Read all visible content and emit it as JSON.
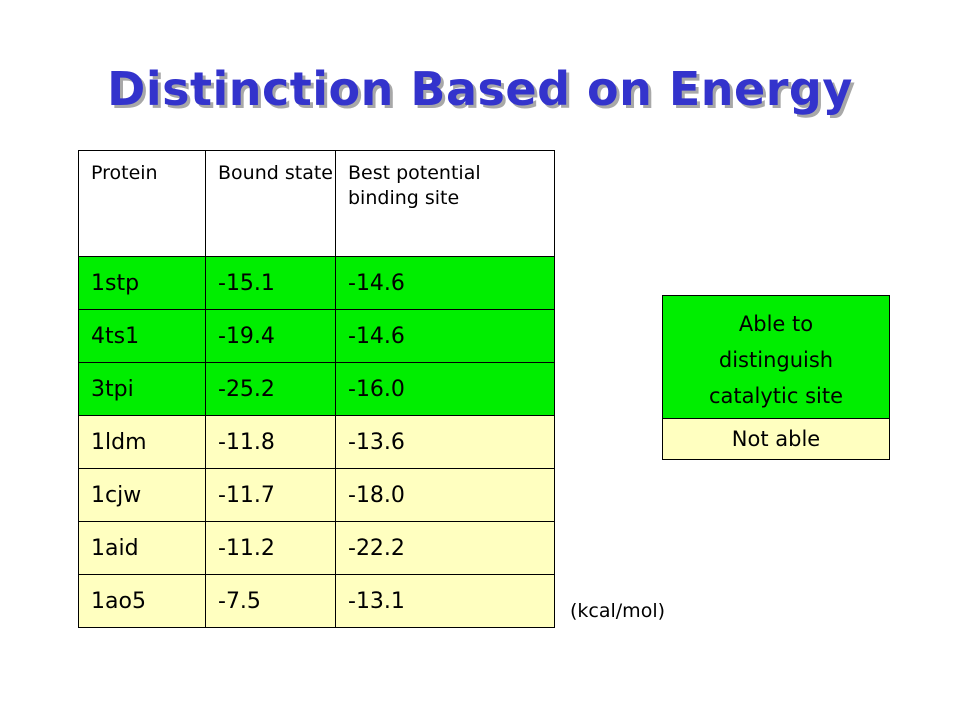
{
  "slide": {
    "title": "Distinction Based on Energy",
    "units": "(kcal/mol)"
  },
  "table": {
    "headers": [
      "Protein",
      "Bound state",
      "Best potential binding site"
    ],
    "rows": [
      {
        "protein": "1stp",
        "bound": "-15.1",
        "best": "-14.6",
        "status": "able"
      },
      {
        "protein": "4ts1",
        "bound": "-19.4",
        "best": "-14.6",
        "status": "able"
      },
      {
        "protein": "3tpi",
        "bound": "-25.2",
        "best": "-16.0",
        "status": "able"
      },
      {
        "protein": "1ldm",
        "bound": "-11.8",
        "best": "-13.6",
        "status": "not"
      },
      {
        "protein": "1cjw",
        "bound": "-11.7",
        "best": "-18.0",
        "status": "not"
      },
      {
        "protein": "1aid",
        "bound": "-11.2",
        "best": "-22.2",
        "status": "not"
      },
      {
        "protein": "1ao5",
        "bound": "-7.5",
        "best": "-13.1",
        "status": "not"
      }
    ]
  },
  "legend": {
    "able_line1": "Able to",
    "able_line2": "distinguish",
    "able_line3": "catalytic site",
    "not_able": "Not able"
  },
  "colors": {
    "title": "#3333cc",
    "able": "#00ee00",
    "not_able": "#ffffc0"
  }
}
